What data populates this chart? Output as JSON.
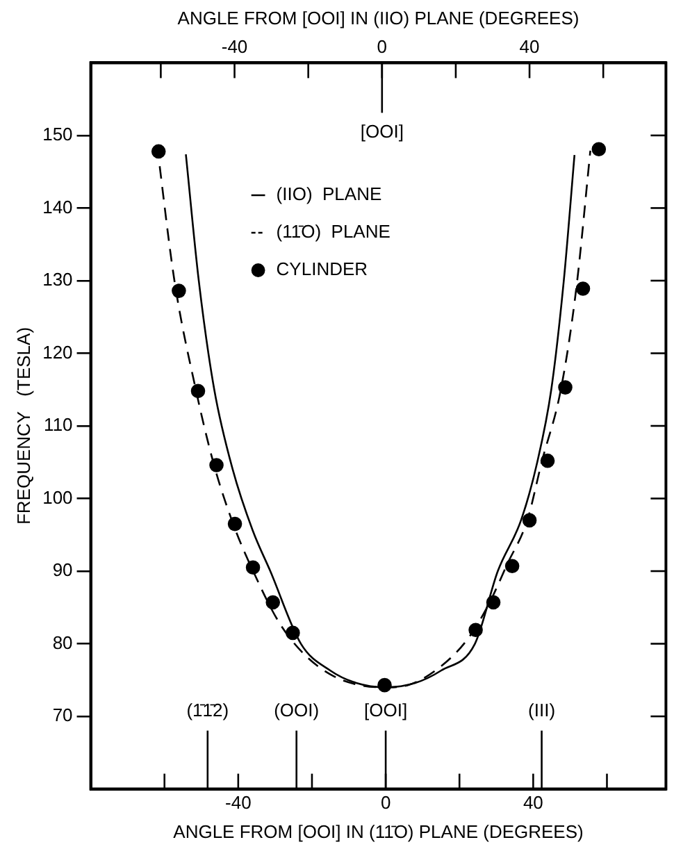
{
  "chart_data": {
    "type": "line",
    "xlabel": "ANGLE FROM [OOI] IN (11̄O) PLANE (DEGREES)",
    "x2label": "ANGLE FROM [OOI] IN (IIO) PLANE (DEGREES)",
    "ylabel": "FREQUENCY   (TESLA)",
    "xlim": [
      -80,
      76
    ],
    "xticks": [
      {
        "value": -60,
        "label": null
      },
      -40,
      {
        "value": -20,
        "label": null
      },
      0,
      {
        "value": 20,
        "label": null
      },
      40,
      {
        "value": 60,
        "label": null
      }
    ],
    "x2lim": [
      -79,
      77
    ],
    "x2ticks": [
      {
        "value": -60,
        "label": null
      },
      -40,
      {
        "value": -20,
        "label": null
      },
      0,
      {
        "value": 20,
        "label": null
      },
      40,
      {
        "value": 60,
        "label": null
      }
    ],
    "ylim": [
      60,
      160
    ],
    "yticks": [
      70,
      80,
      90,
      100,
      110,
      120,
      130,
      140,
      150
    ],
    "grid": false,
    "legend": "top left",
    "ref_lines": [
      {
        "axis": "x2",
        "value": 0,
        "label": "[OOI]"
      },
      {
        "axis": "x",
        "value": -48.3,
        "label": "(1̄1̄2)"
      },
      {
        "axis": "x",
        "value": -24.2,
        "label": "(OOI)"
      },
      {
        "axis": "x",
        "value": 0,
        "label": "[OOI]"
      },
      {
        "axis": "x",
        "value": 42.3,
        "label": "(III)"
      }
    ],
    "series": [
      {
        "name": "(IIO)  PLANE",
        "color": "#000000",
        "line_style": "solid",
        "marker": "none",
        "x": [
          -54.2,
          -50.7,
          -46.5,
          -41.5,
          -36,
          -31.3,
          -23,
          -15,
          -8,
          0,
          8,
          15,
          24.2,
          30.4,
          36.7,
          41.1,
          44.9,
          48.3,
          51.2
        ],
        "values": [
          147.4,
          130,
          115,
          104,
          95.5,
          90,
          80,
          76.3,
          74.6,
          74,
          74.6,
          76.3,
          80,
          90,
          97,
          105,
          115,
          130,
          147.3
        ]
      },
      {
        "name": "(11̄O)  PLANE",
        "color": "#000000",
        "line_style": "dashed",
        "marker": "none",
        "x": [
          -62,
          -57.3,
          -51.5,
          -46.5,
          -41,
          -35.5,
          -29,
          -22,
          -14,
          -6,
          0,
          6,
          14,
          22,
          28,
          33,
          38.4,
          42.3,
          47.5,
          51.7,
          55.5
        ],
        "values": [
          148.6,
          130,
          115,
          104.5,
          96,
          89.5,
          83,
          78.5,
          75.5,
          74.2,
          74,
          74.3,
          76.5,
          80.5,
          85.5,
          91,
          97,
          105,
          115,
          129,
          147.9
        ]
      },
      {
        "name": "CYLINDER",
        "type": "scatter",
        "color": "#000000",
        "marker": "circle",
        "x": [
          -61.6,
          -56.1,
          -50.9,
          -45.9,
          -40.9,
          -36,
          -30.6,
          -25.2,
          -0.3,
          24.4,
          29.2,
          34.3,
          39,
          43.9,
          48.7,
          53.5,
          57.8
        ],
        "values": [
          147.8,
          128.6,
          114.8,
          104.6,
          96.5,
          90.5,
          85.7,
          81.5,
          74.3,
          81.9,
          85.7,
          90.7,
          97,
          105.2,
          115.3,
          128.9,
          148.1
        ]
      }
    ]
  }
}
